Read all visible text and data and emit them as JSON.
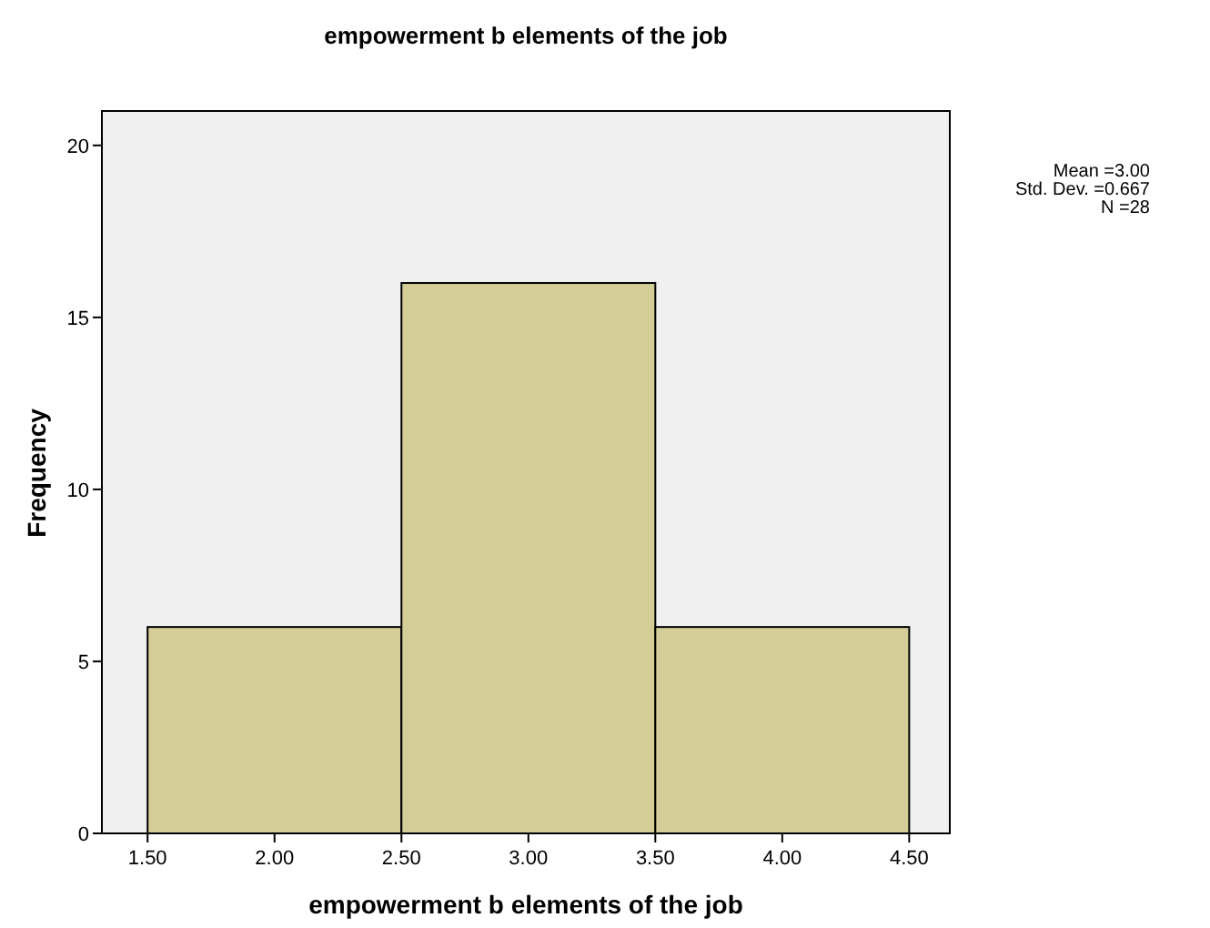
{
  "chart_data": {
    "type": "histogram",
    "title": "empowerment b elements of the job",
    "xlabel": "empowerment b elements of the job",
    "ylabel": "Frequency",
    "bins": [
      1.5,
      2.5,
      3.5,
      4.5
    ],
    "values": [
      6,
      16,
      6
    ],
    "color": "#d3ce97",
    "xlim": [
      1.32,
      4.66
    ],
    "ylim": [
      0,
      21
    ],
    "xticks": [
      {
        "value": 1.5,
        "label": "1.50"
      },
      {
        "value": 2,
        "label": "2.00"
      },
      {
        "value": 2.5,
        "label": "2.50"
      },
      {
        "value": 3,
        "label": "3.00"
      },
      {
        "value": 3.5,
        "label": "3.50"
      },
      {
        "value": 4,
        "label": "4.00"
      },
      {
        "value": 4.5,
        "label": "4.50"
      }
    ],
    "yticks": [
      0,
      5,
      10,
      15,
      20
    ],
    "annotations": [
      "Mean =3.00",
      "Std. Dev. =0.667",
      "N =28"
    ]
  }
}
